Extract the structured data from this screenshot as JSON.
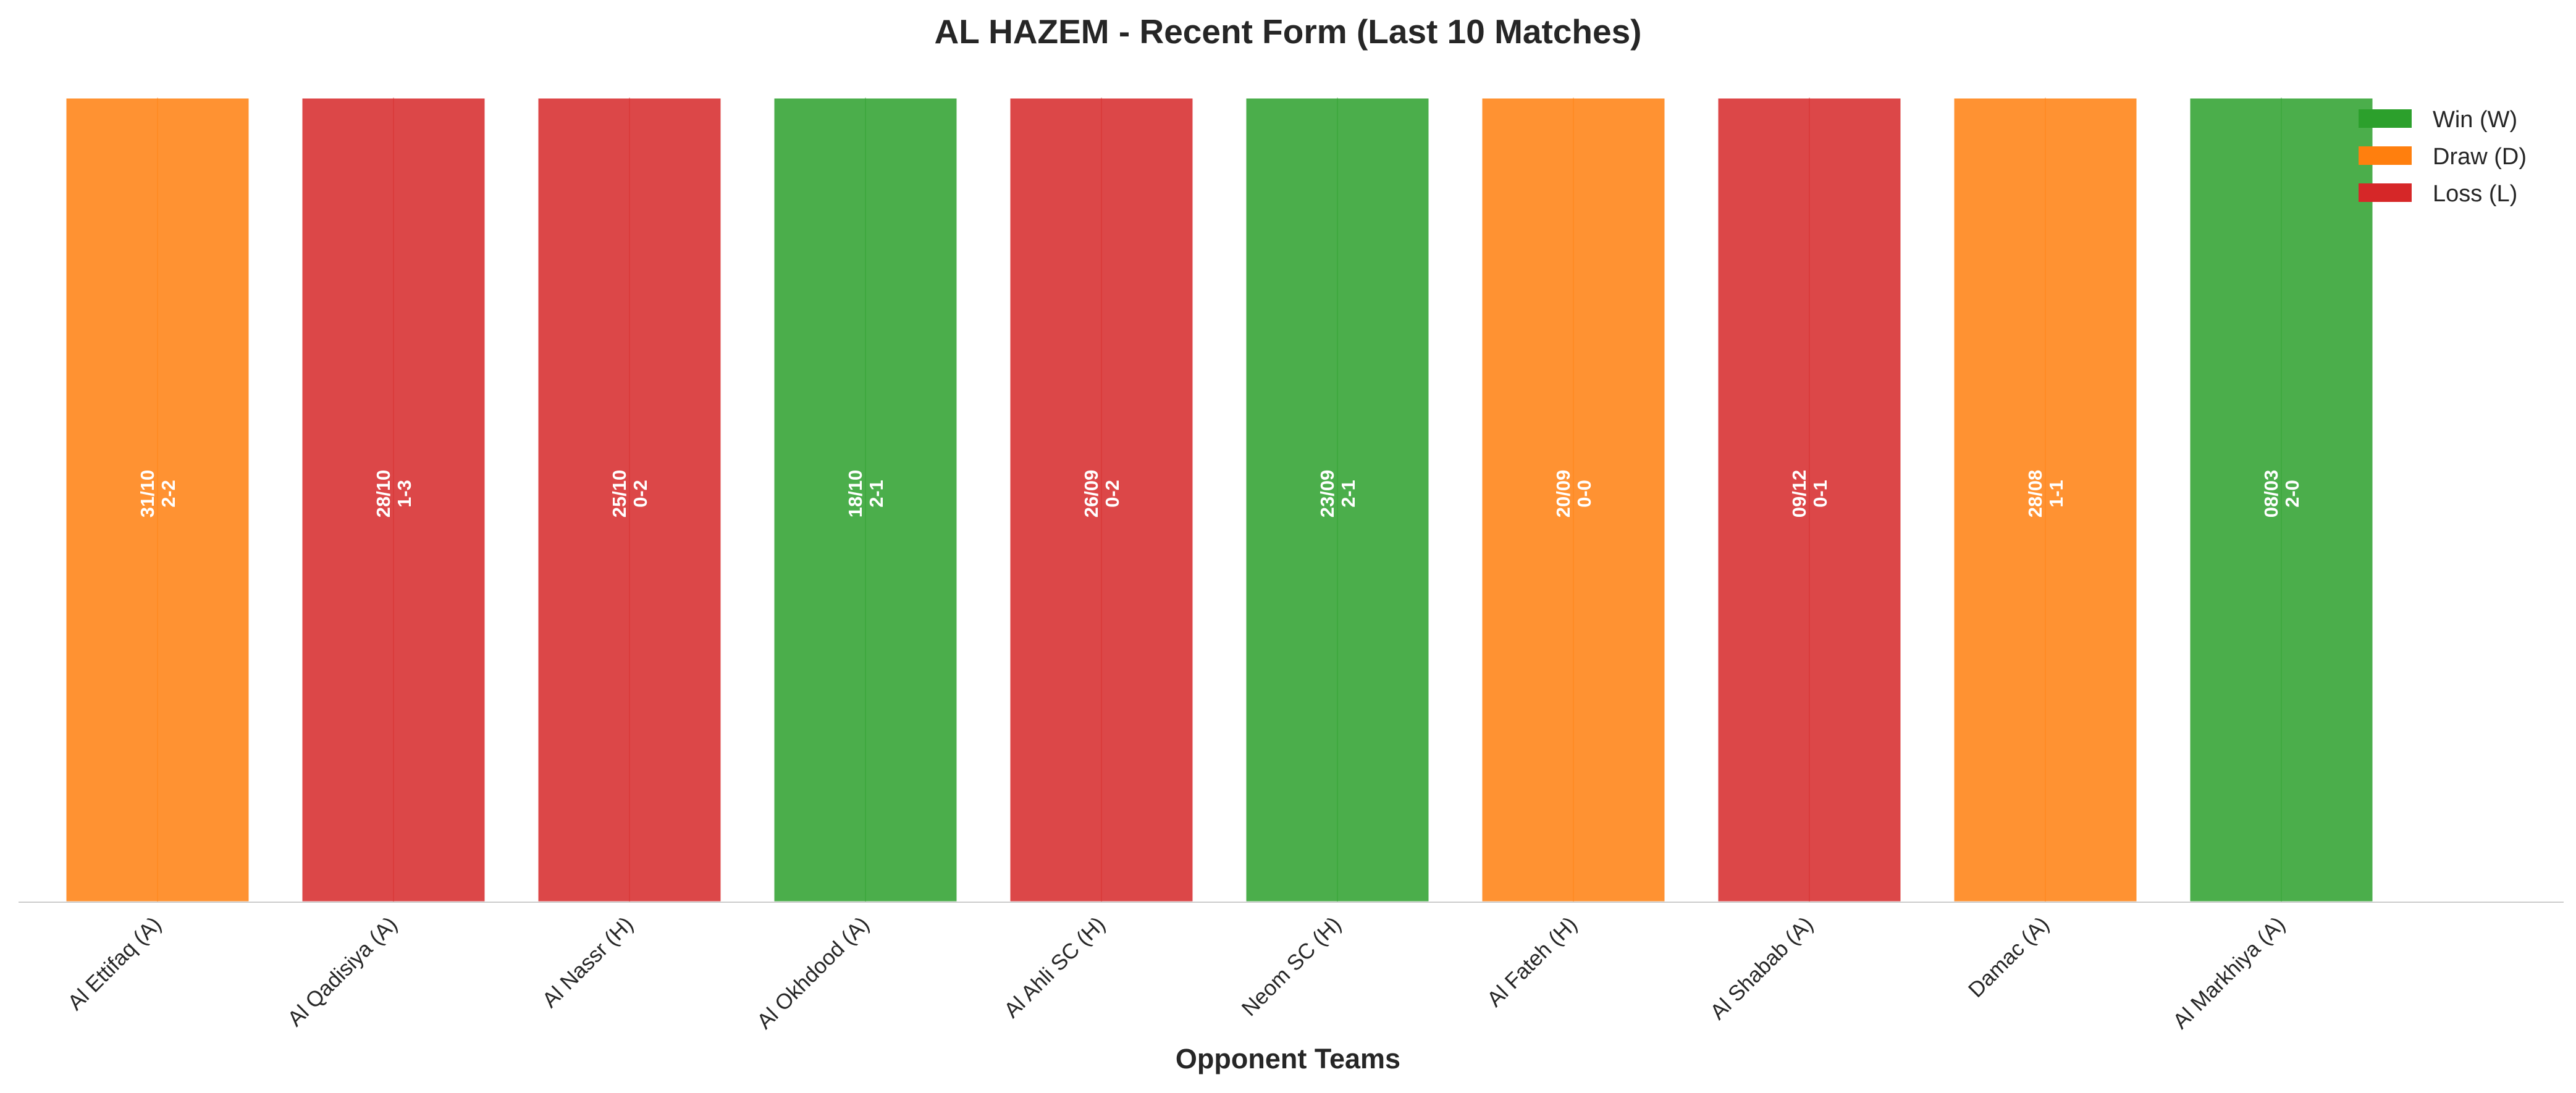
{
  "chart_data": {
    "type": "bar",
    "title": "AL HAZEM - Recent Form (Last 10 Matches)",
    "xlabel": "Opponent Teams",
    "ylabel": "",
    "ylim": [
      0,
      1
    ],
    "grid": false,
    "legend_position": "top-right",
    "categories": [
      "Al Ettifaq (A)",
      "Al Qadisiya (A)",
      "Al Nassr (H)",
      "Al Okhdood (A)",
      "Al Ahli SC (H)",
      "Neom SC (H)",
      "Al Fateh (H)",
      "Al Shabab (A)",
      "Damac (A)",
      "Al Markhiya (A)"
    ],
    "values": [
      1,
      1,
      1,
      1,
      1,
      1,
      1,
      1,
      1,
      1
    ],
    "results": [
      "D",
      "L",
      "L",
      "W",
      "L",
      "W",
      "D",
      "L",
      "D",
      "W"
    ],
    "dates": [
      "31/10",
      "28/10",
      "25/10",
      "18/10",
      "26/09",
      "23/09",
      "20/09",
      "09/12",
      "28/08",
      "08/03"
    ],
    "scores": [
      "2-2",
      "1-3",
      "0-2",
      "2-1",
      "0-2",
      "2-1",
      "0-0",
      "0-1",
      "1-1",
      "2-0"
    ],
    "colors": {
      "W": "#2ca02c",
      "D": "#ff7f0e",
      "L": "#d62728"
    },
    "legend": [
      {
        "key": "W",
        "label": "Win (W)"
      },
      {
        "key": "D",
        "label": "Draw (D)"
      },
      {
        "key": "L",
        "label": "Loss (L)"
      }
    ]
  }
}
